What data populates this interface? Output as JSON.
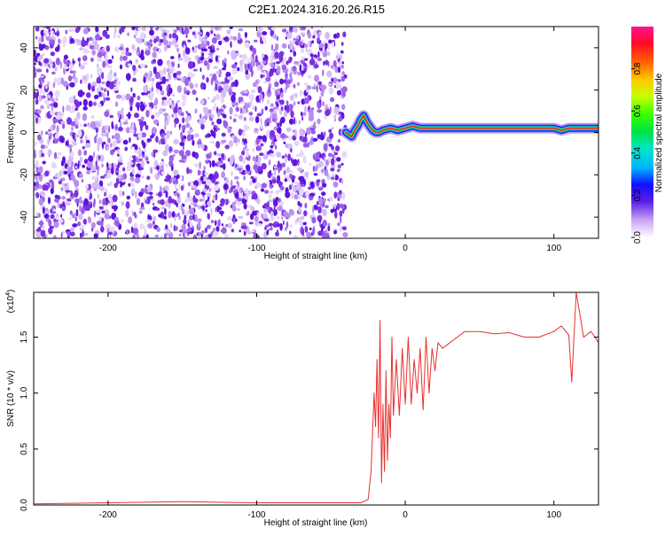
{
  "title": "C2E1.2024.316.20.26.R15",
  "spectrogram": {
    "chart_data": {
      "type": "heatmap",
      "xlabel": "Height of straight line (km)",
      "ylabel": "Frequency (Hz)",
      "xlim": [
        -250,
        130
      ],
      "ylim": [
        -50,
        50
      ],
      "xticks": [
        -200,
        -100,
        0,
        100
      ],
      "xtick_labels": [
        "-200",
        "-100",
        "0",
        "100"
      ],
      "yticks": [
        -40,
        -20,
        0,
        20,
        40
      ],
      "ytick_labels": [
        "-40",
        "-20",
        "0",
        "20",
        "40"
      ],
      "noise_region_km": [
        -250,
        -40
      ],
      "signal_track": {
        "x": [
          -40,
          -36,
          -34,
          -32,
          -30,
          -28,
          -26,
          -24,
          -22,
          -20,
          -18,
          -15,
          -10,
          -5,
          0,
          5,
          10,
          20,
          40,
          60,
          80,
          90,
          100,
          105,
          110,
          120,
          130
        ],
        "y": [
          0,
          -2,
          1,
          3,
          6,
          8,
          5,
          3,
          1,
          0,
          0,
          1,
          2,
          1,
          2,
          3,
          2,
          2,
          2,
          2,
          2,
          2,
          2,
          1,
          2,
          2,
          2
        ]
      },
      "colorbar": {
        "label": "Normalized spectral amplitude",
        "range": [
          0,
          1
        ],
        "ticks": [
          0.0,
          0.2,
          0.4,
          0.6,
          0.8
        ],
        "tick_labels": [
          "0.0",
          "0.2",
          "0.4",
          "0.6",
          "0.8"
        ]
      }
    }
  },
  "snr": {
    "chart_data": {
      "type": "line",
      "xlabel": "Height of straight line (km)",
      "ylabel": "SNR (10 * v/v)",
      "scale_label": "(x10",
      "scale_exp": "4",
      "scale_close": ")",
      "xlim": [
        -250,
        130
      ],
      "ylim": [
        0,
        1.9
      ],
      "xticks": [
        -200,
        -100,
        0,
        100
      ],
      "xtick_labels": [
        "-200",
        "-100",
        "0",
        "100"
      ],
      "yticks": [
        0.0,
        0.5,
        1.0,
        1.5
      ],
      "ytick_labels": [
        "0.0",
        "0.5",
        "1.0",
        "1.5"
      ],
      "color": "#e8302e",
      "series": [
        {
          "x": [
            -250,
            -200,
            -150,
            -100,
            -60,
            -30,
            -25,
            -23,
            -21,
            -20,
            -19,
            -18,
            -17,
            -16,
            -15,
            -14,
            -13,
            -12,
            -11,
            -10,
            -9,
            -8,
            -6,
            -4,
            -2,
            0,
            2,
            4,
            6,
            8,
            10,
            12,
            14,
            16,
            18,
            20,
            22,
            25,
            30,
            35,
            40,
            50,
            60,
            70,
            80,
            90,
            100,
            105,
            110,
            112,
            115,
            120,
            125,
            130
          ],
          "y": [
            0.01,
            0.02,
            0.03,
            0.02,
            0.02,
            0.02,
            0.05,
            0.3,
            1.0,
            0.7,
            1.3,
            0.6,
            1.65,
            0.2,
            0.9,
            0.3,
            1.2,
            0.4,
            0.9,
            0.6,
            1.5,
            0.8,
            1.3,
            0.8,
            1.4,
            0.9,
            1.5,
            0.9,
            1.3,
            1.0,
            1.4,
            0.85,
            1.5,
            1.0,
            1.4,
            1.2,
            1.45,
            1.4,
            1.45,
            1.5,
            1.55,
            1.55,
            1.53,
            1.54,
            1.5,
            1.5,
            1.55,
            1.6,
            1.52,
            1.1,
            1.9,
            1.5,
            1.55,
            1.45
          ]
        }
      ]
    }
  }
}
